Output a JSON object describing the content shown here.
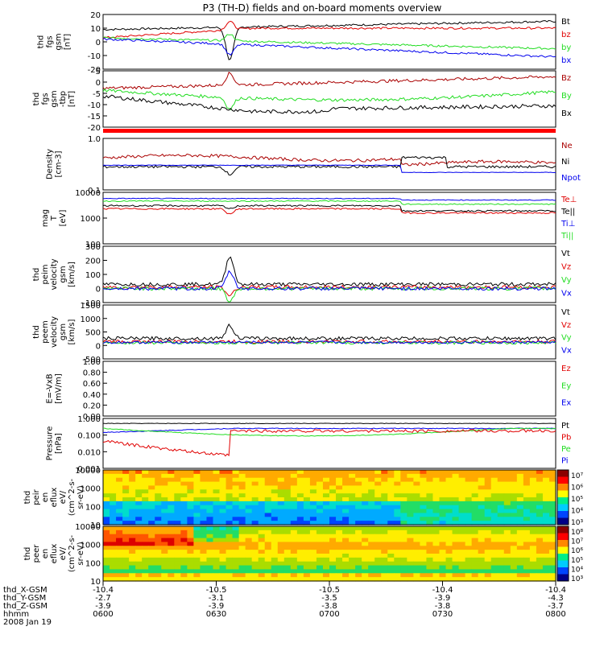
{
  "title": "P3 (TH-D) fields and on-board moments overview",
  "date": "2008 Jan 19",
  "colors": {
    "black": "#000000",
    "red": "#e00000",
    "green": "#22dd22",
    "blue": "#0000ee",
    "darkred": "#aa0000"
  },
  "chart_data": [
    {
      "type": "line",
      "panel": "fgs_gsm",
      "ylabel": [
        "thd",
        "fgs",
        "gsm",
        "[nT]"
      ],
      "yticks": [
        "20",
        "10",
        "0",
        "-10",
        "-20"
      ],
      "legend": [
        {
          "name": "Bt",
          "color": "black"
        },
        {
          "name": "bz",
          "color": "red"
        },
        {
          "name": "by",
          "color": "green"
        },
        {
          "name": "bx",
          "color": "blue"
        }
      ]
    },
    {
      "type": "line",
      "panel": "fgs_gsm_tbp",
      "ylabel": [
        "thd",
        "fgs",
        "gsm",
        "-tbp",
        "[nT]"
      ],
      "yticks": [
        "5",
        "0",
        "-5",
        "-10",
        "-15",
        "-20"
      ],
      "legend": [
        {
          "name": "Bz",
          "color": "darkred"
        },
        {
          "name": "By",
          "color": "green"
        },
        {
          "name": "Bx",
          "color": "black"
        }
      ]
    },
    {
      "type": "line",
      "panel": "density",
      "ylabel": [
        "Density",
        "[cm-3]"
      ],
      "yticks": [
        "1.0",
        "0.1"
      ],
      "ylog": true,
      "legend": [
        {
          "name": "Ne",
          "color": "darkred"
        },
        {
          "name": "Ni",
          "color": "black"
        },
        {
          "name": "Npot",
          "color": "blue"
        }
      ]
    },
    {
      "type": "line",
      "panel": "temperature",
      "ylabel": [
        "mag",
        "T",
        "[eV]"
      ],
      "yticks": [
        "10000",
        "1000",
        "100"
      ],
      "ylog": true,
      "legend": [
        {
          "name": "Te⊥",
          "color": "red"
        },
        {
          "name": "Te||",
          "color": "black"
        },
        {
          "name": "Ti⊥",
          "color": "blue"
        },
        {
          "name": "Ti||",
          "color": "green"
        }
      ]
    },
    {
      "type": "line",
      "panel": "peim_velocity",
      "ylabel": [
        "thd",
        "peim",
        "velocity",
        "gsm",
        "[km/s]"
      ],
      "yticks": [
        "300",
        "200",
        "100",
        "0",
        "-100"
      ],
      "legend": [
        {
          "name": "Vt",
          "color": "black"
        },
        {
          "name": "Vz",
          "color": "red"
        },
        {
          "name": "Vy",
          "color": "green"
        },
        {
          "name": "Vx",
          "color": "blue"
        }
      ]
    },
    {
      "type": "line",
      "panel": "peem_velocity",
      "ylabel": [
        "thd",
        "peem",
        "velocity",
        "gsm",
        "[km/s]"
      ],
      "yticks": [
        "1500",
        "1000",
        "500",
        "0",
        "-500"
      ],
      "legend": [
        {
          "name": "Vt",
          "color": "black"
        },
        {
          "name": "Vz",
          "color": "red"
        },
        {
          "name": "Vy",
          "color": "green"
        },
        {
          "name": "Vx",
          "color": "blue"
        }
      ]
    },
    {
      "type": "line",
      "panel": "e_vxb",
      "ylabel": [
        "E=-VxB",
        "[mV/m]"
      ],
      "yticks": [
        "1.00",
        "0.80",
        "0.60",
        "0.40",
        "0.20",
        "0.00"
      ],
      "legend": [
        {
          "name": "Ez",
          "color": "red"
        },
        {
          "name": "Ey",
          "color": "green"
        },
        {
          "name": "Ex",
          "color": "blue"
        }
      ]
    },
    {
      "type": "line",
      "panel": "pressure",
      "ylabel": [
        "Pressure",
        "[nPa]"
      ],
      "yticks": [
        "1.000",
        "0.100",
        "0.010",
        "0.001"
      ],
      "ylog": true,
      "legend": [
        {
          "name": "Pt",
          "color": "black"
        },
        {
          "name": "Pb",
          "color": "red"
        },
        {
          "name": "Pe",
          "color": "green"
        },
        {
          "name": "Pi",
          "color": "blue"
        }
      ]
    },
    {
      "type": "heatmap",
      "panel": "peir_eflux",
      "ylabel": [
        "thd",
        "peir",
        "en",
        "eflux",
        "eV/",
        "(cm^2-s-",
        "sr-eV)"
      ],
      "yticks": [
        "10000",
        "1000",
        "100",
        "10"
      ],
      "ylog": true,
      "colorbar": [
        "10⁷",
        "10⁶",
        "10⁵",
        "10⁴",
        "10³"
      ]
    },
    {
      "type": "heatmap",
      "panel": "peer_eflux",
      "ylabel": [
        "thd",
        "peer",
        "en",
        "eflux",
        "eV/",
        "(cm^2-s-",
        "sr-eV)"
      ],
      "yticks": [
        "10000",
        "1000",
        "100",
        "10"
      ],
      "ylog": true,
      "colorbar": [
        "10⁸",
        "10⁷",
        "10⁶",
        "10⁵",
        "10⁴",
        "10³"
      ]
    }
  ],
  "x_axis": {
    "row_labels": [
      "thd_X-GSM",
      "thd_Y-GSM",
      "thd_Z-GSM",
      "hhmm"
    ],
    "ticks": [
      {
        "x": "-10.4",
        "y": "-2.7",
        "z": "-3.9",
        "t": "0600"
      },
      {
        "x": "-10.5",
        "y": "-3.1",
        "z": "-3.9",
        "t": "0630"
      },
      {
        "x": "-10.5",
        "y": "-3.5",
        "z": "-3.8",
        "t": "0700"
      },
      {
        "x": "-10.4",
        "y": "-3.9",
        "z": "-3.8",
        "t": "0730"
      },
      {
        "x": "-10.4",
        "y": "-4.3",
        "z": "-3.7",
        "t": "0800"
      }
    ]
  }
}
